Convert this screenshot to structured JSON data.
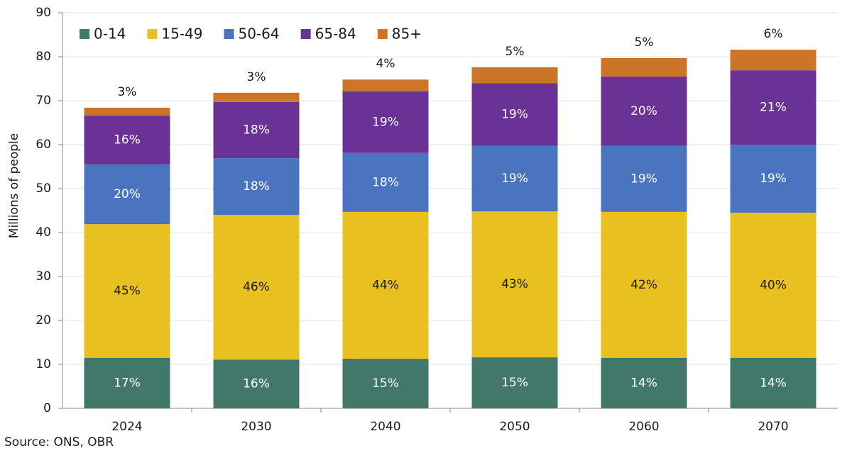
{
  "chart_data": {
    "type": "stacked-bar",
    "y_label": "Millions of people",
    "source": "Source: ONS, OBR",
    "categories": [
      "2024",
      "2030",
      "2040",
      "2050",
      "2060",
      "2070"
    ],
    "series": [
      {
        "name": "0-14",
        "color": "#41786a",
        "label_color": "#ffffff",
        "values": [
          11.5,
          11.1,
          11.3,
          11.6,
          11.5,
          11.5
        ],
        "percent_labels": [
          "17%",
          "16%",
          "15%",
          "15%",
          "14%",
          "14%"
        ]
      },
      {
        "name": "15-49",
        "color": "#e8c120",
        "label_color": "#1a1a1a",
        "values": [
          30.4,
          32.9,
          33.4,
          33.2,
          33.2,
          33.0
        ],
        "percent_labels": [
          "45%",
          "46%",
          "44%",
          "43%",
          "42%",
          "40%"
        ]
      },
      {
        "name": "50-64",
        "color": "#4a74c0",
        "label_color": "#ffffff",
        "values": [
          13.6,
          12.9,
          13.4,
          14.9,
          15.0,
          15.5
        ],
        "percent_labels": [
          "20%",
          "18%",
          "18%",
          "19%",
          "19%",
          "19%"
        ]
      },
      {
        "name": "65-84",
        "color": "#6a3294",
        "label_color": "#ffffff",
        "values": [
          11.1,
          12.8,
          14.0,
          14.3,
          15.8,
          16.9
        ],
        "percent_labels": [
          "16%",
          "18%",
          "19%",
          "19%",
          "20%",
          "21%"
        ]
      },
      {
        "name": "85+",
        "color": "#cc7428",
        "label_color": "#1a1a1a",
        "values": [
          1.8,
          2.1,
          2.7,
          3.6,
          4.2,
          4.7
        ],
        "percent_labels": [
          "3%",
          "3%",
          "4%",
          "5%",
          "5%",
          "6%"
        ]
      }
    ],
    "ylim": [
      0,
      90
    ],
    "yticks": [
      0,
      10,
      20,
      30,
      40,
      50,
      60,
      70,
      80,
      90
    ],
    "grid": true
  }
}
